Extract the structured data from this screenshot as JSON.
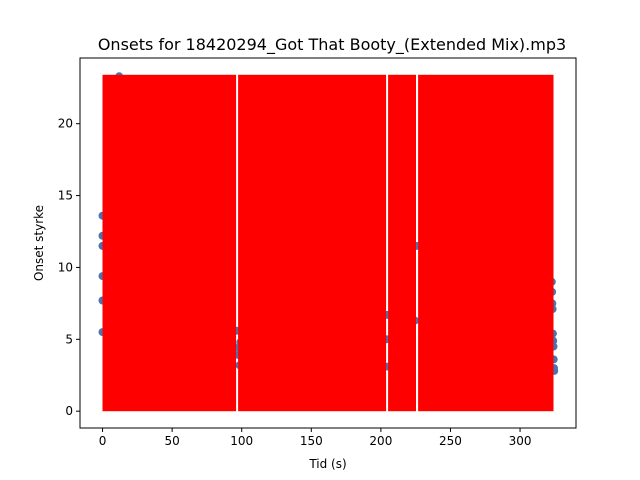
{
  "chart_data": {
    "type": "scatter",
    "title": "Onsets for 18420294_Got That Booty_(Extended Mix).mp3",
    "xlabel": "Tid (s)",
    "ylabel": "Onset styrke",
    "xlim": [
      -16.2,
      340.2
    ],
    "ylim": [
      -1.17,
      24.57
    ],
    "xticks": [
      0,
      50,
      100,
      150,
      200,
      250,
      300
    ],
    "yticks": [
      0,
      5,
      10,
      15,
      20
    ],
    "grid": false,
    "colors": {
      "points": "#4c72b0",
      "onsets": "#ff0000"
    },
    "onset_band": {
      "y0": 0,
      "y1": 23.4
    },
    "gaps": [
      96.7,
      204.5,
      226.0
    ],
    "onset_range": [
      0.0,
      324.0
    ],
    "points": [
      [
        0.0,
        5.5
      ],
      [
        0.0,
        7.7
      ],
      [
        0.0,
        13.6
      ],
      [
        0.0,
        12.2
      ],
      [
        0.0,
        11.5
      ],
      [
        0.0,
        9.4
      ],
      [
        12.0,
        23.3
      ],
      [
        96.6,
        5.6
      ],
      [
        97.2,
        4.4
      ],
      [
        97.8,
        3.9
      ],
      [
        98.4,
        3.2
      ],
      [
        99.0,
        4.8
      ],
      [
        204.0,
        5.0
      ],
      [
        204.6,
        6.7
      ],
      [
        205.0,
        3.1
      ],
      [
        224.5,
        6.3
      ],
      [
        225.8,
        11.5
      ],
      [
        322.8,
        9.0
      ],
      [
        323.0,
        8.3
      ],
      [
        323.2,
        7.5
      ],
      [
        323.4,
        7.1
      ],
      [
        323.6,
        5.4
      ],
      [
        323.8,
        4.9
      ],
      [
        324.0,
        4.5
      ],
      [
        324.2,
        3.6
      ],
      [
        324.4,
        3.0
      ],
      [
        324.5,
        2.8
      ]
    ]
  }
}
